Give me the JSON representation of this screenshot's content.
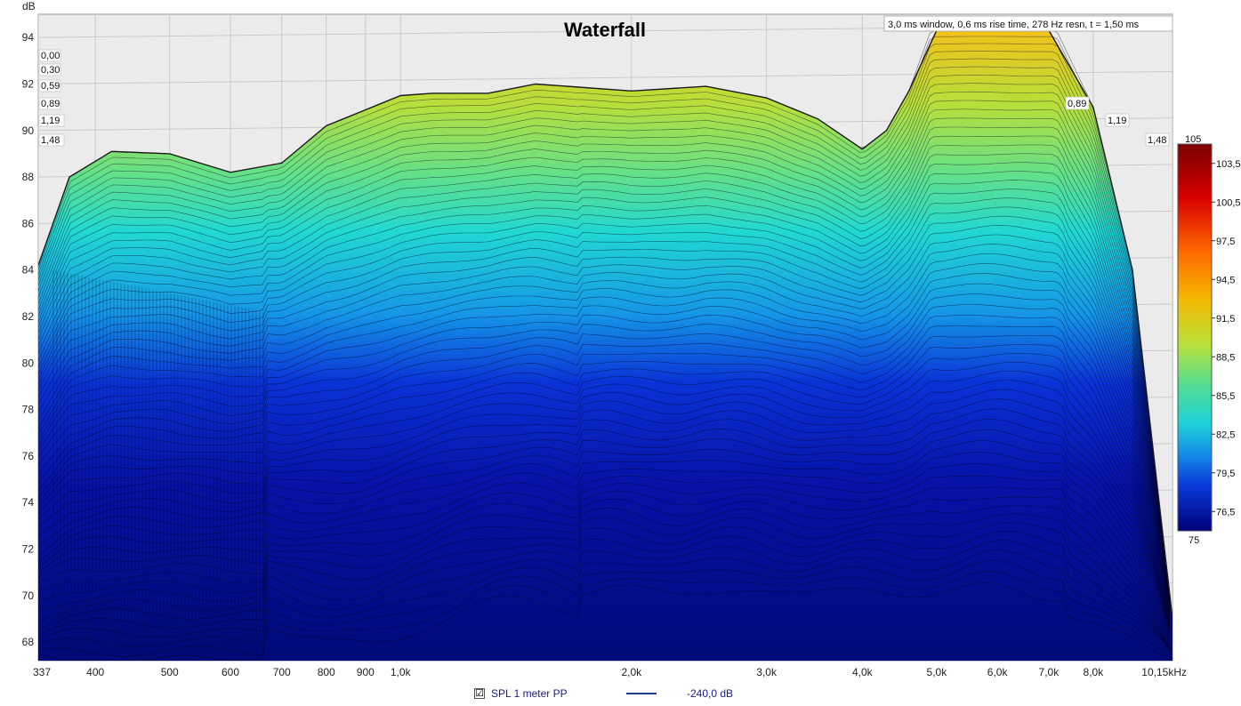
{
  "chart_data": {
    "type": "area",
    "title": "Waterfall",
    "info": "3,0 ms window, 0,6 ms rise time,  278 Hz resn, t = 1,50 ms",
    "ylabel": "dB",
    "y_ticks": [
      "68",
      "70",
      "72",
      "74",
      "76",
      "78",
      "80",
      "82",
      "84",
      "86",
      "88",
      "90",
      "92",
      "94"
    ],
    "x_ticks": [
      "337",
      "400",
      "500",
      "600",
      "700",
      "800",
      "900",
      "1,0k",
      "2,0k",
      "3,0k",
      "4,0k",
      "5,0k",
      "6,0k",
      "7,0k",
      "8,0k",
      "10,15kHz"
    ],
    "x_tick_values": [
      337,
      400,
      500,
      600,
      700,
      800,
      900,
      1000,
      2000,
      3000,
      4000,
      5000,
      6000,
      7000,
      8000,
      10150
    ],
    "x_scale": "log",
    "xlim": [
      337,
      10150
    ],
    "ylim": [
      67.2,
      95
    ],
    "time_labels_left": [
      "0,00",
      "0,30",
      "0,59",
      "0,89",
      "1,19",
      "1,48"
    ],
    "time_labels_right": [
      "0,89",
      "1,19",
      "1,48"
    ],
    "colorbar": {
      "min_label": "75",
      "max_label": "105",
      "ticks": [
        "103,5",
        "100,5",
        "97,5",
        "94,5",
        "91,5",
        "88,5",
        "85,5",
        "82,5",
        "79,5",
        "76,5"
      ]
    },
    "front_slice": {
      "freq_hz": [
        337,
        370,
        420,
        500,
        600,
        700,
        800,
        1000,
        1100,
        1300,
        1500,
        2000,
        2500,
        3000,
        3500,
        4000,
        4300,
        4600,
        5000,
        5500,
        6000,
        7000,
        8000,
        9000,
        10150
      ],
      "db": [
        84.2,
        88.0,
        89.1,
        89.0,
        88.2,
        88.6,
        90.2,
        91.5,
        91.6,
        91.6,
        92.0,
        91.7,
        91.9,
        91.4,
        90.5,
        89.2,
        90.0,
        91.7,
        95.0,
        95.0,
        95.0,
        95.0,
        91.0,
        84.0,
        69.0
      ]
    },
    "colors": {
      "plot_bg": "#ebebeb",
      "grid": "#c8c8c8",
      "back_slice": "#f0c419",
      "front_slice_base": "#00008b"
    }
  },
  "legend": {
    "checked": "☑",
    "name": "SPL 1 meter PP",
    "value": "-240,0 dB",
    "line_color": "#1b3d8f"
  }
}
